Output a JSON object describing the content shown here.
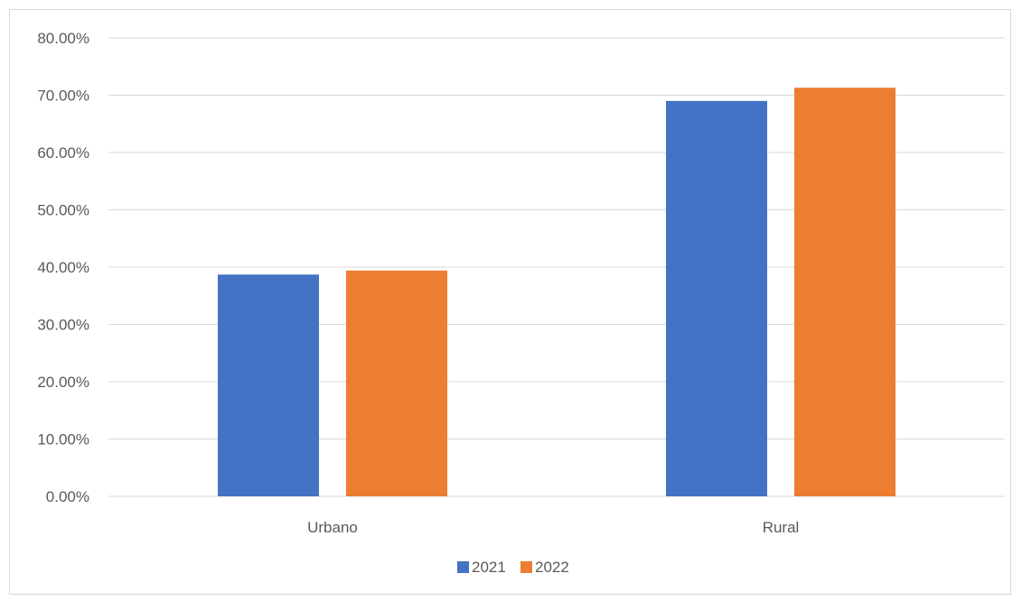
{
  "chart_data": {
    "type": "bar",
    "title": "",
    "xlabel": "",
    "ylabel": "",
    "categories": [
      "Urbano",
      "Rural"
    ],
    "series": [
      {
        "name": "2021",
        "values": [
          0.387,
          0.69
        ],
        "color": "#4472C4"
      },
      {
        "name": "2022",
        "values": [
          0.394,
          0.713
        ],
        "color": "#ED7D31"
      }
    ],
    "ylim": [
      0,
      0.8
    ],
    "y_ticks": [
      0,
      0.1,
      0.2,
      0.3,
      0.4,
      0.5,
      0.6,
      0.7,
      0.8
    ],
    "y_tick_labels": [
      "0.00%",
      "10.00%",
      "20.00%",
      "30.00%",
      "40.00%",
      "50.00%",
      "60.00%",
      "70.00%",
      "80.00%"
    ],
    "grid": true,
    "legend_position": "bottom",
    "gridline_color": "#d9d9d9",
    "text_color": "#595959"
  }
}
